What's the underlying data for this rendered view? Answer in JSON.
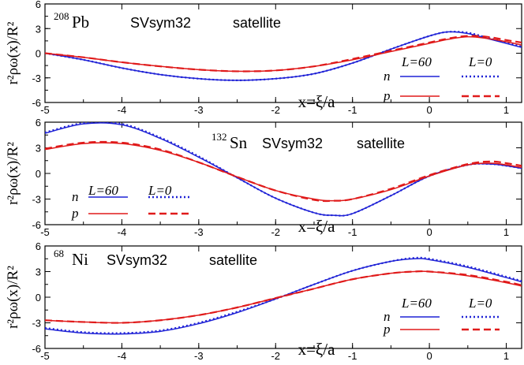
{
  "chart_data": [
    {
      "type": "line",
      "id": "pb",
      "nucleus": "Pb",
      "mass_number": "208",
      "model": "SVsym32",
      "mode": "satellite",
      "ylabel": "r²ρω(x)/R²",
      "xlabel": "x=ξ/a",
      "xlim": [
        -5,
        1.2
      ],
      "ylim": [
        -6,
        6
      ],
      "xticks": [
        -5,
        -4,
        -3,
        -2,
        -1,
        0,
        1
      ],
      "yticks": [
        -6,
        -3,
        0,
        3,
        6
      ],
      "x": [
        -5,
        -4.5,
        -4,
        -3.5,
        -3,
        -2.5,
        -2,
        -1.5,
        -1,
        -0.5,
        0,
        0.25,
        0.5,
        0.75,
        1,
        1.2
      ],
      "series": [
        {
          "name": "n L=60",
          "color": "#1f22d6",
          "dash": "solid",
          "values": [
            0,
            -0.8,
            -1.8,
            -2.6,
            -3.1,
            -3.3,
            -3.1,
            -2.5,
            -1.2,
            0.5,
            2.1,
            2.6,
            2.4,
            1.8,
            1.2,
            0.7
          ]
        },
        {
          "name": "n L=0",
          "color": "#1f22d6",
          "dash": "dotted",
          "values": [
            0,
            -0.8,
            -1.8,
            -2.6,
            -3.1,
            -3.3,
            -3.1,
            -2.5,
            -1.2,
            0.5,
            2.1,
            2.6,
            2.5,
            1.9,
            1.3,
            0.8
          ]
        },
        {
          "name": "p L=60",
          "color": "#e01a1a",
          "dash": "solid",
          "values": [
            0,
            -0.5,
            -1.1,
            -1.6,
            -2.0,
            -2.2,
            -2.1,
            -1.6,
            -0.8,
            0.2,
            1.2,
            1.7,
            2.0,
            1.8,
            1.4,
            1.0
          ]
        },
        {
          "name": "p L=0",
          "color": "#e01a1a",
          "dash": "dashed",
          "values": [
            0,
            -0.5,
            -1.1,
            -1.6,
            -2.0,
            -2.2,
            -2.1,
            -1.6,
            -0.7,
            0.3,
            1.3,
            1.8,
            2.1,
            2.0,
            1.6,
            1.3
          ]
        }
      ],
      "legend": {
        "n_label": "n",
        "p_label": "p",
        "col1": "L=60",
        "col2": "L=0",
        "placement": "bottom-right"
      }
    },
    {
      "type": "line",
      "id": "sn",
      "nucleus": "Sn",
      "mass_number": "132",
      "model": "SVsym32",
      "mode": "satellite",
      "ylabel": "r²ρω(x)/R²",
      "xlabel": "x=ξ/a",
      "xlim": [
        -5,
        1.2
      ],
      "ylim": [
        -6,
        6
      ],
      "xticks": [
        -5,
        -4,
        -3,
        -2,
        -1,
        0,
        1
      ],
      "yticks": [
        -6,
        -3,
        0,
        3,
        6
      ],
      "x": [
        -5,
        -4.5,
        -4,
        -3.5,
        -3,
        -2.5,
        -2,
        -1.5,
        -1.25,
        -1,
        -0.5,
        0,
        0.5,
        0.8,
        1,
        1.2
      ],
      "series": [
        {
          "name": "n L=60",
          "color": "#1f22d6",
          "dash": "solid",
          "values": [
            4.7,
            5.8,
            5.7,
            4.1,
            1.9,
            -0.5,
            -2.9,
            -4.6,
            -4.9,
            -4.7,
            -2.6,
            -0.3,
            1.0,
            1.1,
            0.9,
            0.6
          ]
        },
        {
          "name": "n L=0",
          "color": "#1f22d6",
          "dash": "dotted",
          "values": [
            4.8,
            5.9,
            5.8,
            4.2,
            2.0,
            -0.5,
            -2.9,
            -4.6,
            -4.9,
            -4.7,
            -2.6,
            -0.3,
            1.0,
            1.1,
            0.9,
            0.6
          ]
        },
        {
          "name": "p L=60",
          "color": "#e01a1a",
          "dash": "solid",
          "values": [
            2.8,
            3.5,
            3.5,
            2.7,
            1.3,
            -0.4,
            -2.0,
            -3.0,
            -3.2,
            -3.0,
            -1.9,
            -0.3,
            1.0,
            1.2,
            1.0,
            0.7
          ]
        },
        {
          "name": "p L=0",
          "color": "#e01a1a",
          "dash": "dashed",
          "values": [
            2.9,
            3.6,
            3.6,
            2.8,
            1.3,
            -0.4,
            -2.0,
            -3.1,
            -3.2,
            -3.0,
            -1.8,
            -0.2,
            1.1,
            1.4,
            1.2,
            0.9
          ]
        }
      ],
      "legend": {
        "n_label": "n",
        "p_label": "p",
        "col1": "L=60",
        "col2": "L=0",
        "placement": "bottom-left"
      }
    },
    {
      "type": "line",
      "id": "ni",
      "nucleus": "Ni",
      "mass_number": "68",
      "model": "SVsym32",
      "mode": "satellite",
      "ylabel": "r²ρω(x)/R²",
      "xlabel": "x=ξ/a",
      "xlim": [
        -5,
        1.2
      ],
      "ylim": [
        -6,
        6
      ],
      "xticks": [
        -5,
        -4,
        -3,
        -2,
        -1,
        0,
        1
      ],
      "yticks": [
        -6,
        -3,
        0,
        3,
        6
      ],
      "x": [
        -5,
        -4.5,
        -4,
        -3.5,
        -3,
        -2.5,
        -2,
        -1.5,
        -1,
        -0.5,
        -0.2,
        0,
        0.5,
        1,
        1.2
      ],
      "series": [
        {
          "name": "n L=60",
          "color": "#1f22d6",
          "dash": "solid",
          "values": [
            -3.7,
            -4.2,
            -4.3,
            -4.0,
            -3.1,
            -1.8,
            -0.2,
            1.5,
            3.1,
            4.2,
            4.5,
            4.4,
            3.5,
            2.3,
            1.8
          ]
        },
        {
          "name": "n L=0",
          "color": "#1f22d6",
          "dash": "dotted",
          "values": [
            -3.6,
            -4.1,
            -4.2,
            -3.9,
            -3.0,
            -1.7,
            -0.2,
            1.5,
            3.1,
            4.2,
            4.6,
            4.5,
            3.6,
            2.4,
            1.9
          ]
        },
        {
          "name": "p L=60",
          "color": "#e01a1a",
          "dash": "solid",
          "values": [
            -2.7,
            -2.9,
            -3.0,
            -2.7,
            -2.1,
            -1.2,
            -0.1,
            1.0,
            2.1,
            2.8,
            3.0,
            3.0,
            2.5,
            1.7,
            1.3
          ]
        },
        {
          "name": "p L=0",
          "color": "#e01a1a",
          "dash": "dashed",
          "values": [
            -2.7,
            -2.9,
            -3.0,
            -2.7,
            -2.1,
            -1.2,
            -0.1,
            1.0,
            2.1,
            2.8,
            3.0,
            3.0,
            2.6,
            1.8,
            1.4
          ]
        }
      ],
      "legend": {
        "n_label": "n",
        "p_label": "p",
        "col1": "L=60",
        "col2": "L=0",
        "placement": "bottom-right"
      }
    }
  ]
}
